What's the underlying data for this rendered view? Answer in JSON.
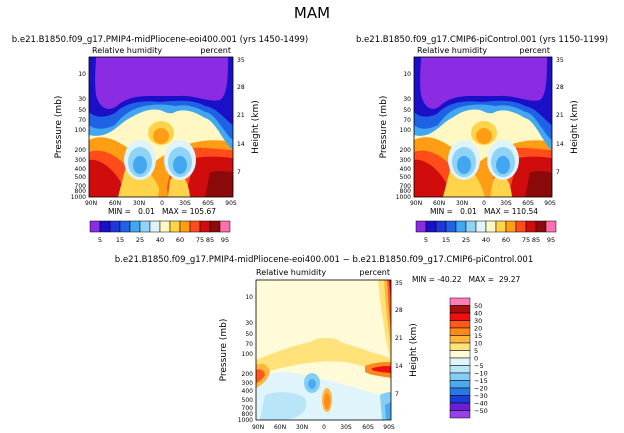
{
  "figure": {
    "season": "MAM"
  },
  "panels": [
    {
      "id": "p1",
      "title": "b.e21.B1850.f09_g17.PMIP4-midPliocene-eoi400.001 (yrs 1450-1499)",
      "left_label": "Relative humidity",
      "right_label": "percent",
      "stats": "MIN =   0.01   MAX = 105.67"
    },
    {
      "id": "p2",
      "title": "b.e21.B1850.f09_g17.CMIP6-piControl.001 (yrs 1150-1199)",
      "left_label": "Relative humidity",
      "right_label": "percent",
      "stats": "MIN =   0.01   MAX = 110.54"
    },
    {
      "id": "p3",
      "title": "b.e21.B1850.f09_g17.PMIP4-midPliocene-eoi400.001 − b.e21.B1850.f09_g17.CMIP6-piControl.001",
      "left_label": "Relative humidity",
      "right_label": "percent",
      "stats": "MIN = -40.22   MAX =  29.27"
    }
  ],
  "chart_data": [
    {
      "type": "heatmap",
      "title": "b.e21.B1850.f09_g17.PMIP4-midPliocene-eoi400.001 (yrs 1450-1499)",
      "xlabel": "",
      "ylabel": "Pressure (mb)",
      "y2label": "Height (km)",
      "x_ticks": [
        "90N",
        "60N",
        "30N",
        "0",
        "30S",
        "60S",
        "90S"
      ],
      "y_ticks": [
        10,
        30,
        50,
        70,
        100,
        200,
        300,
        400,
        500,
        700,
        800,
        1000
      ],
      "y2_ticks": [
        35,
        28,
        21,
        14,
        7
      ],
      "ylim": [
        1000,
        3
      ],
      "y_scale": "log",
      "min": 0.01,
      "max": 105.67,
      "colorbar_levels": [
        5,
        15,
        25,
        40,
        60,
        75,
        85,
        95
      ]
    },
    {
      "type": "heatmap",
      "title": "b.e21.B1850.f09_g17.CMIP6-piControl.001 (yrs 1150-1199)",
      "xlabel": "",
      "ylabel": "Pressure (mb)",
      "y2label": "Height (km)",
      "x_ticks": [
        "90N",
        "60N",
        "30N",
        "0",
        "30S",
        "60S",
        "90S"
      ],
      "y_ticks": [
        10,
        30,
        50,
        70,
        100,
        200,
        300,
        400,
        500,
        700,
        800,
        1000
      ],
      "y2_ticks": [
        35,
        28,
        21,
        14,
        7
      ],
      "ylim": [
        1000,
        3
      ],
      "y_scale": "log",
      "min": 0.01,
      "max": 110.54,
      "colorbar_levels": [
        5,
        15,
        25,
        40,
        60,
        75,
        85,
        95
      ]
    },
    {
      "type": "heatmap",
      "title": "b.e21.B1850.f09_g17.PMIP4-midPliocene-eoi400.001 − b.e21.B1850.f09_g17.CMIP6-piControl.001",
      "xlabel": "",
      "ylabel": "Pressure (mb)",
      "y2label": "Height (km)",
      "x_ticks": [
        "90N",
        "60N",
        "30N",
        "0",
        "30S",
        "60S",
        "90S"
      ],
      "y_ticks": [
        10,
        30,
        50,
        70,
        100,
        200,
        300,
        400,
        500,
        700,
        800,
        1000
      ],
      "y2_ticks": [
        35,
        28,
        21,
        14,
        7
      ],
      "ylim": [
        1000,
        3
      ],
      "y_scale": "log",
      "min": -40.22,
      "max": 29.27,
      "colorbar_levels": [
        50,
        40,
        30,
        20,
        15,
        10,
        5,
        0,
        -5,
        -10,
        -15,
        -20,
        -30,
        -40,
        -50
      ]
    }
  ],
  "colors": {
    "abs": [
      "#8b2be2",
      "#1a10c8",
      "#1f62e6",
      "#42a7f0",
      "#8fd3f7",
      "#dff3fb",
      "#fff8c4",
      "#ffd44a",
      "#ff9d14",
      "#ff4d1a",
      "#d10c0c",
      "#8c0a0a",
      "#ff6fb0"
    ],
    "diff": [
      "#ff7fb6",
      "#a81010",
      "#ee1010",
      "#ff5a1a",
      "#ff8a1a",
      "#ffb63a",
      "#ffe27a",
      "#fffbd8",
      "#dff4fb",
      "#b8e5f8",
      "#83cff3",
      "#4daaf0",
      "#2a78e6",
      "#1a3ed8",
      "#6a1fd6",
      "#9a40e8"
    ]
  }
}
